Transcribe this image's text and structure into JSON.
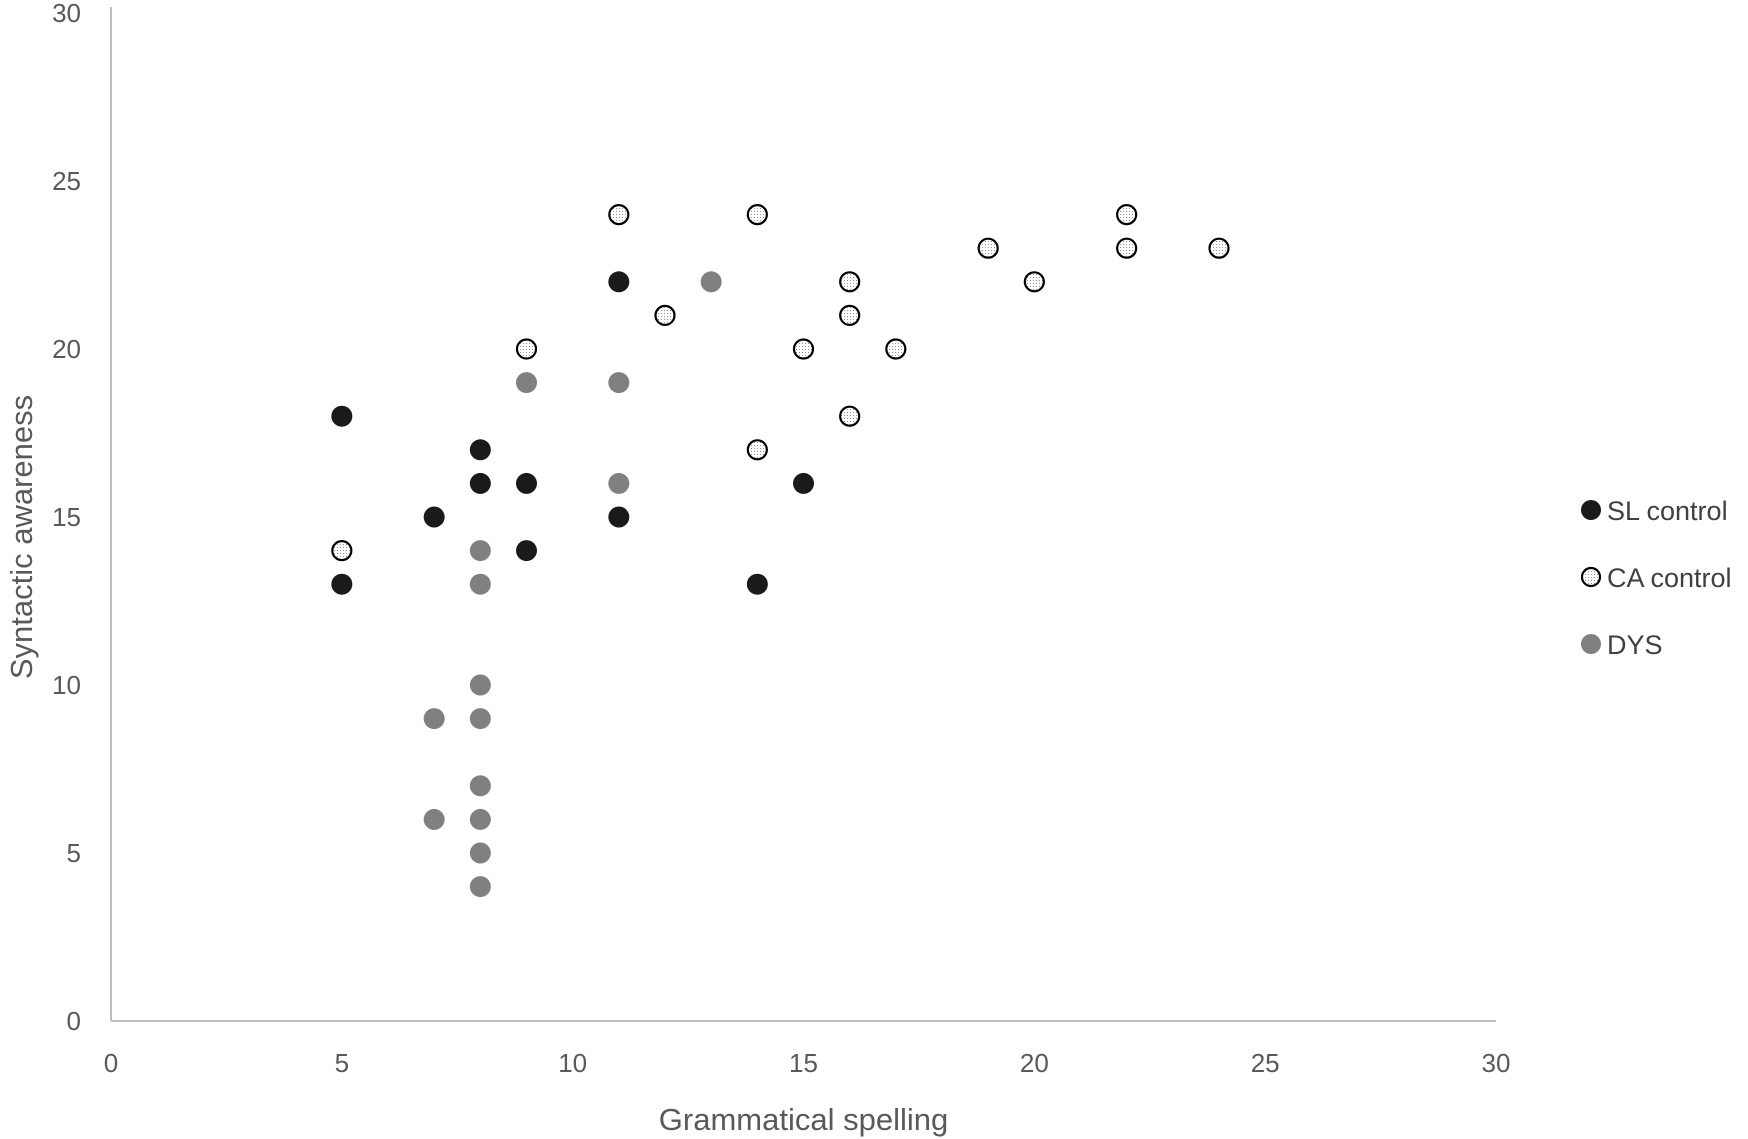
{
  "chart_data": {
    "type": "scatter",
    "xlabel": "Grammatical spelling",
    "ylabel": "Syntactic awareness",
    "xlim": [
      0,
      30
    ],
    "ylim": [
      0,
      30
    ],
    "xticks": [
      0,
      5,
      10,
      15,
      20,
      25,
      30
    ],
    "yticks": [
      0,
      5,
      10,
      15,
      20,
      25,
      30
    ],
    "grid": false,
    "legend_position": "right",
    "series": [
      {
        "name": "SL control",
        "marker": "filled-dark",
        "color": "#1a1a1a",
        "points": [
          [
            5,
            18
          ],
          [
            5,
            13
          ],
          [
            7,
            15
          ],
          [
            8,
            17
          ],
          [
            8,
            16
          ],
          [
            9,
            16
          ],
          [
            9,
            14
          ],
          [
            11,
            22
          ],
          [
            11,
            15
          ],
          [
            14,
            13
          ],
          [
            15,
            16
          ]
        ]
      },
      {
        "name": "CA control",
        "marker": "open-dotted",
        "color": "#000000",
        "points": [
          [
            5,
            14
          ],
          [
            9,
            20
          ],
          [
            11,
            24
          ],
          [
            12,
            21
          ],
          [
            14,
            24
          ],
          [
            14,
            17
          ],
          [
            15,
            20
          ],
          [
            16,
            22
          ],
          [
            16,
            21
          ],
          [
            16,
            18
          ],
          [
            17,
            20
          ],
          [
            19,
            23
          ],
          [
            20,
            22
          ],
          [
            22,
            24
          ],
          [
            22,
            23
          ],
          [
            24,
            23
          ]
        ]
      },
      {
        "name": "DYS",
        "marker": "filled-gray",
        "color": "#808080",
        "points": [
          [
            7,
            9
          ],
          [
            7,
            6
          ],
          [
            8,
            14
          ],
          [
            8,
            13
          ],
          [
            8,
            10
          ],
          [
            8,
            9
          ],
          [
            8,
            7
          ],
          [
            8,
            6
          ],
          [
            8,
            5
          ],
          [
            8,
            4
          ],
          [
            9,
            19
          ],
          [
            11,
            19
          ],
          [
            11,
            16
          ],
          [
            13,
            22
          ]
        ]
      }
    ]
  }
}
